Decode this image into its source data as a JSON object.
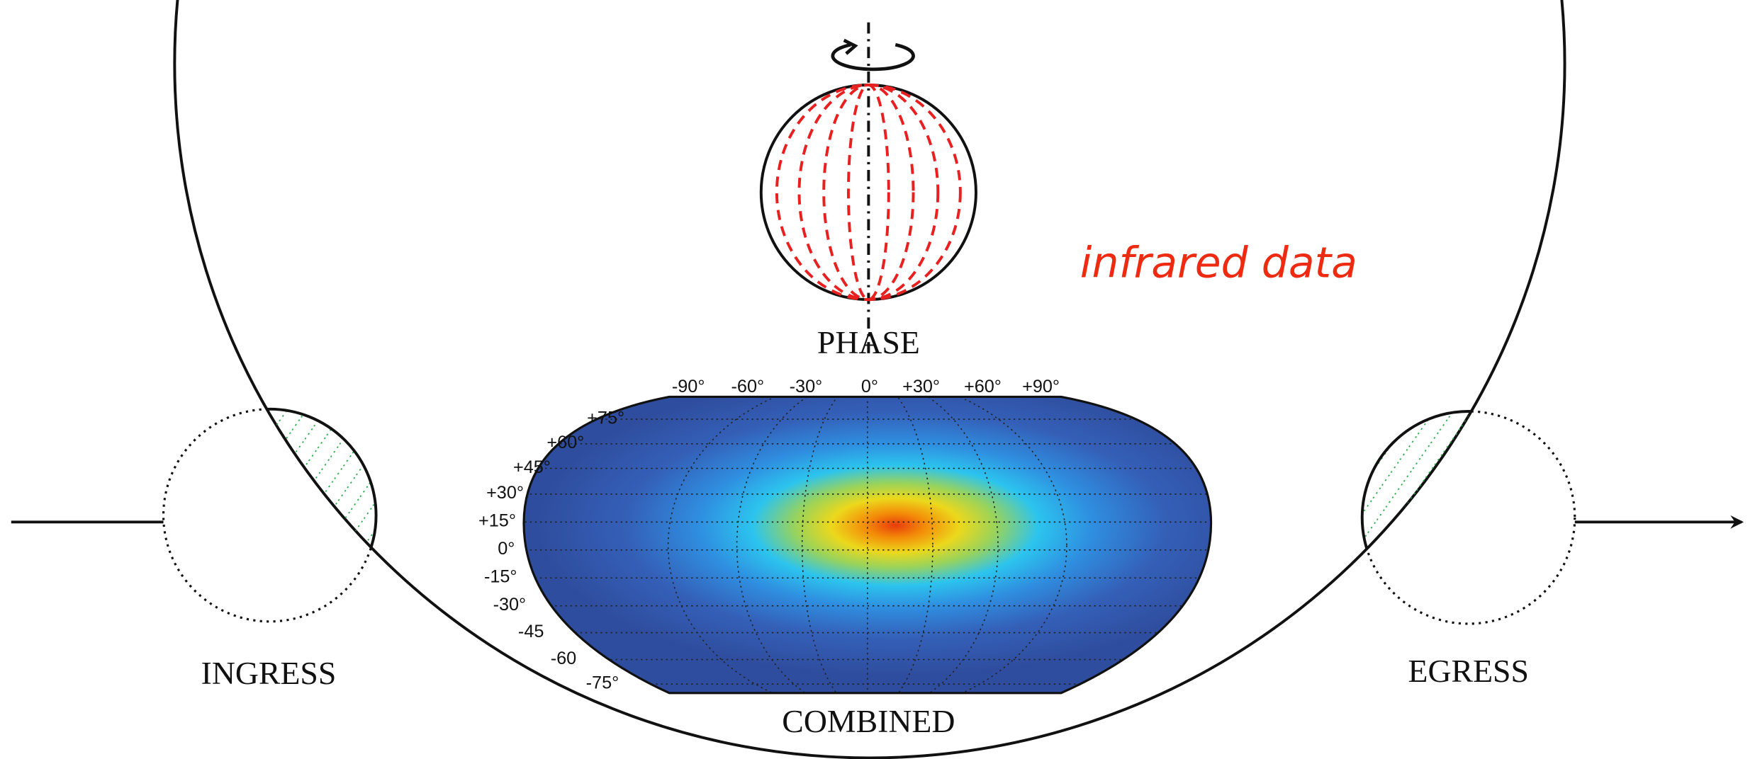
{
  "labels": {
    "phase": "PHASE",
    "combined": "COMBINED",
    "ingress": "INGRESS",
    "egress": "EGRESS",
    "annotation": "infrared data"
  },
  "map": {
    "longitude_labels": [
      "-90°",
      "-60°",
      "-30°",
      "0°",
      "+30°",
      "+60°",
      "+90°"
    ],
    "latitude_labels": [
      "+75°",
      "+60°",
      "+45°",
      "+30°",
      "+15°",
      "0°",
      "-15°",
      "-30°",
      "-45",
      "-60",
      "-75°"
    ]
  }
}
